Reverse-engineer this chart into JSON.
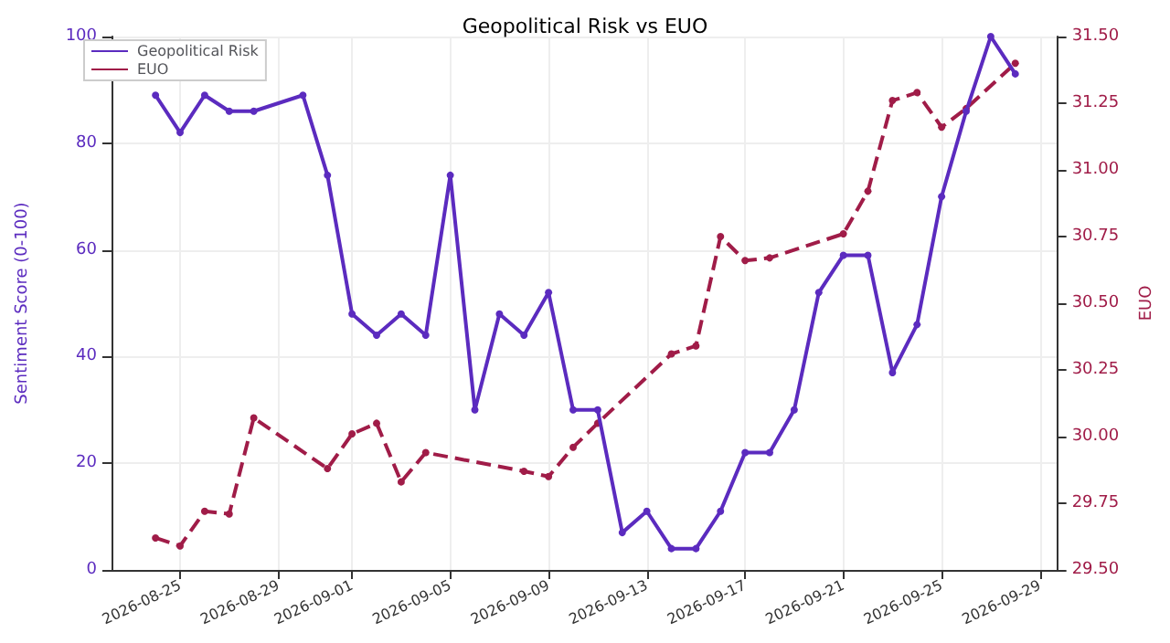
{
  "chart_data": {
    "type": "line",
    "title": "Geopolitical Risk vs EUO",
    "ylabel": "Sentiment Score (0-100)",
    "y2label": "EUO",
    "xlim": [
      "2026-08-22T05:00",
      "2026-09-29T17:00"
    ],
    "xticks": [
      "2026-08-25",
      "2026-08-29",
      "2026-09-01",
      "2026-09-05",
      "2026-09-09",
      "2026-09-13",
      "2026-09-17",
      "2026-09-21",
      "2026-09-25",
      "2026-09-29"
    ],
    "ylim": [
      0,
      100
    ],
    "yticks": [
      0,
      20,
      40,
      60,
      80,
      100
    ],
    "y2lim": [
      29.5,
      31.5
    ],
    "y2ticks": [
      {
        "value": 29.5,
        "label": "29.50"
      },
      {
        "value": 29.75,
        "label": "29.75"
      },
      {
        "value": 30,
        "label": "30.00"
      },
      {
        "value": 30.25,
        "label": "30.25"
      },
      {
        "value": 30.5,
        "label": "30.50"
      },
      {
        "value": 30.75,
        "label": "30.75"
      },
      {
        "value": 31,
        "label": "31.00"
      },
      {
        "value": 31.25,
        "label": "31.25"
      },
      {
        "value": 31.5,
        "label": "31.50"
      }
    ],
    "grid": true,
    "legend": "top left",
    "marker": "circle",
    "series": [
      {
        "name": "Geopolitical Risk",
        "color": "#5b2bbf",
        "line_style": "solid",
        "x": [
          "2026-08-24",
          "2026-08-25",
          "2026-08-26",
          "2026-08-27",
          "2026-08-28",
          "2026-08-30",
          "2026-08-31",
          "2026-09-01",
          "2026-09-02",
          "2026-09-03",
          "2026-09-04",
          "2026-09-05",
          "2026-09-06",
          "2026-09-07",
          "2026-09-08",
          "2026-09-09",
          "2026-09-10",
          "2026-09-11",
          "2026-09-12",
          "2026-09-13",
          "2026-09-14",
          "2026-09-15",
          "2026-09-16",
          "2026-09-17",
          "2026-09-18",
          "2026-09-19",
          "2026-09-20",
          "2026-09-21",
          "2026-09-22",
          "2026-09-23",
          "2026-09-24",
          "2026-09-25",
          "2026-09-26",
          "2026-09-27",
          "2026-09-28"
        ],
        "values": [
          89,
          82,
          89,
          86,
          86,
          89,
          74,
          48,
          44,
          48,
          44,
          74,
          30,
          48,
          44,
          52,
          30,
          30,
          7,
          11,
          4,
          4,
          11,
          22,
          22,
          30,
          52,
          59,
          59,
          37,
          46,
          70,
          86,
          100,
          93
        ]
      },
      {
        "name": "EUO",
        "color": "#a01c48",
        "line_style": "dashed",
        "axis": "y2",
        "x": [
          "2026-08-24",
          "2026-08-25",
          "2026-08-26",
          "2026-08-27",
          "2026-08-28",
          "2026-08-31",
          "2026-09-01",
          "2026-09-02",
          "2026-09-03",
          "2026-09-04",
          "2026-09-08",
          "2026-09-09",
          "2026-09-10",
          "2026-09-11",
          "2026-09-14",
          "2026-09-15",
          "2026-09-16",
          "2026-09-17",
          "2026-09-18",
          "2026-09-21",
          "2026-09-22",
          "2026-09-23",
          "2026-09-24",
          "2026-09-25",
          "2026-09-26",
          "2026-09-28"
        ],
        "values": [
          29.62,
          29.59,
          29.72,
          29.71,
          30.07,
          29.88,
          30.01,
          30.05,
          29.83,
          29.94,
          29.87,
          29.85,
          29.96,
          30.05,
          30.31,
          30.34,
          30.75,
          30.66,
          30.67,
          30.76,
          30.92,
          31.26,
          31.29,
          31.16,
          31.23,
          31.4
        ]
      }
    ]
  }
}
